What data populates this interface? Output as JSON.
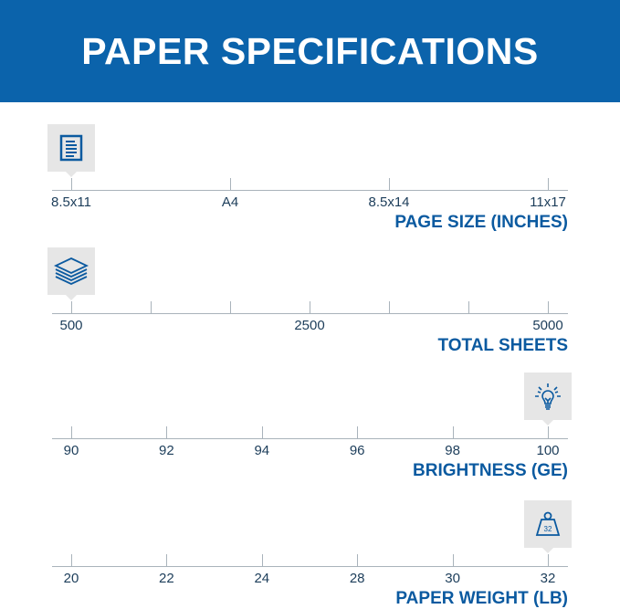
{
  "title": "PAPER SPECIFICATIONS",
  "accent": "#0b63ab",
  "scales": [
    {
      "name": "page-size",
      "title": "PAGE SIZE (INCHES)",
      "icon": "document-icon",
      "ticks": [
        "8.5x11",
        "A4",
        "8.5x14",
        "11x17"
      ],
      "labels": [
        "8.5x11",
        "A4",
        "8.5x14",
        "11x17"
      ],
      "minor_ticks": 0,
      "selected": "8.5x11"
    },
    {
      "name": "total-sheets",
      "title": "TOTAL SHEETS",
      "icon": "paper-stack-icon",
      "ticks": [
        "500",
        "",
        "",
        "",
        "",
        "",
        "5000"
      ],
      "labels": [
        "500",
        "",
        "",
        "2500",
        "",
        "",
        "5000"
      ],
      "selected": "500"
    },
    {
      "name": "brightness",
      "title": "BRIGHTNESS (GE)",
      "icon": "lightbulb-icon",
      "labels": [
        "90",
        "92",
        "94",
        "96",
        "98",
        "100"
      ],
      "selected": "100"
    },
    {
      "name": "paper-weight",
      "title": "PAPER WEIGHT (LB)",
      "icon": "weight-icon",
      "icon_text": "32",
      "labels": [
        "20",
        "22",
        "24",
        "28",
        "30",
        "32"
      ],
      "selected": "32"
    }
  ]
}
